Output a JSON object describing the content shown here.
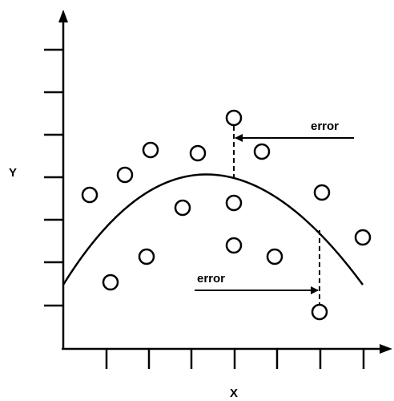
{
  "labels": {
    "x_axis": "X",
    "y_axis": "Y",
    "error_top": "error",
    "error_bottom": "error"
  },
  "colors": {
    "ink": "#000000",
    "background": "#ffffff"
  }
}
